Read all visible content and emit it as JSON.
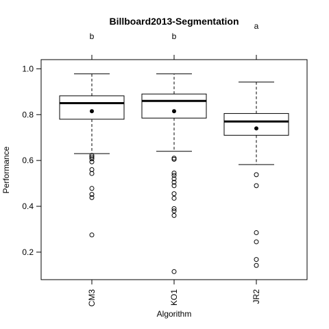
{
  "chart_data": {
    "type": "box",
    "title": "Billboard2013-Segmentation",
    "xlabel": "Algorithm",
    "ylabel": "Performance",
    "ylim": [
      0.08,
      1.04
    ],
    "yticks": [
      0.2,
      0.4,
      0.6,
      0.8,
      1.0
    ],
    "ytick_labels": [
      "0.2",
      "0.4",
      "0.6",
      "0.8",
      "1.0"
    ],
    "categories": [
      "CM3",
      "KO1",
      "JR2"
    ],
    "group_letters": [
      "b",
      "b",
      "a"
    ],
    "boxes": [
      {
        "name": "CM3",
        "whisker_low": 0.63,
        "q1": 0.78,
        "median": 0.85,
        "q3": 0.882,
        "whisker_high": 0.978,
        "mean": 0.815,
        "outliers": [
          0.622,
          0.615,
          0.607,
          0.594,
          0.56,
          0.543,
          0.478,
          0.452,
          0.438,
          0.275
        ]
      },
      {
        "name": "KO1",
        "whisker_low": 0.64,
        "q1": 0.785,
        "median": 0.86,
        "q3": 0.89,
        "whisker_high": 0.978,
        "mean": 0.815,
        "outliers": [
          0.61,
          0.605,
          0.545,
          0.535,
          0.52,
          0.505,
          0.49,
          0.455,
          0.435,
          0.39,
          0.38,
          0.36,
          0.115
        ]
      },
      {
        "name": "JR2",
        "whisker_low": 0.582,
        "q1": 0.71,
        "median": 0.77,
        "q3": 0.805,
        "whisker_high": 0.942,
        "mean": 0.74,
        "outliers": [
          0.538,
          0.49,
          0.285,
          0.245,
          0.168,
          0.142
        ]
      }
    ]
  }
}
